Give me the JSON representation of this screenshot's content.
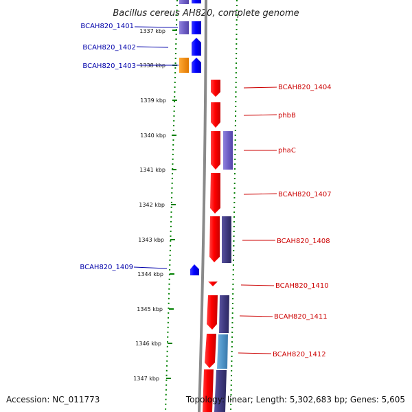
{
  "title": "Bacillus cereus AH820, complete genome",
  "footer": {
    "accession": "Accession: NC_011773",
    "summary": "Topology: linear; Length: 5,302,683 bp; Genes: 5,605"
  },
  "ticks": [
    "1337 kbp",
    "1338 kbp",
    "1339 kbp",
    "1340 kbp",
    "1341 kbp",
    "1342 kbp",
    "1343 kbp",
    "1344 kbp",
    "1345 kbp",
    "1346 kbp",
    "1347 kbp"
  ],
  "genes_left": [
    {
      "id": "gene-bcah820-1401",
      "label": "BCAH820_1401"
    },
    {
      "id": "gene-bcah820-1402",
      "label": "BCAH820_1402"
    },
    {
      "id": "gene-bcah820-1403",
      "label": "BCAH820_1403"
    },
    {
      "id": "gene-bcah820-1409",
      "label": "BCAH820_1409"
    }
  ],
  "genes_right": [
    {
      "id": "gene-bcah820-1404",
      "label": "BCAH820_1404"
    },
    {
      "id": "gene-phbb",
      "label": "phbB"
    },
    {
      "id": "gene-phac",
      "label": "phaC"
    },
    {
      "id": "gene-bcah820-1407",
      "label": "BCAH820_1407"
    },
    {
      "id": "gene-bcah820-1408",
      "label": "BCAH820_1408"
    },
    {
      "id": "gene-bcah820-1410",
      "label": "BCAH820_1410"
    },
    {
      "id": "gene-bcah820-1411",
      "label": "BCAH820_1411"
    },
    {
      "id": "gene-bcah820-1412",
      "label": "BCAH820_1412"
    }
  ],
  "colors": {
    "forward": "#0000ff",
    "reverse": "#ff0000",
    "cog_purple": "#6f5fc7",
    "cog_dark": "#3f3a80",
    "cog_teal": "#4f94c8",
    "orange": "#ff8c00",
    "backbone": "#7f7f7f",
    "tick": "#008000",
    "left_label": "#0000aa",
    "right_label": "#cc0000"
  }
}
